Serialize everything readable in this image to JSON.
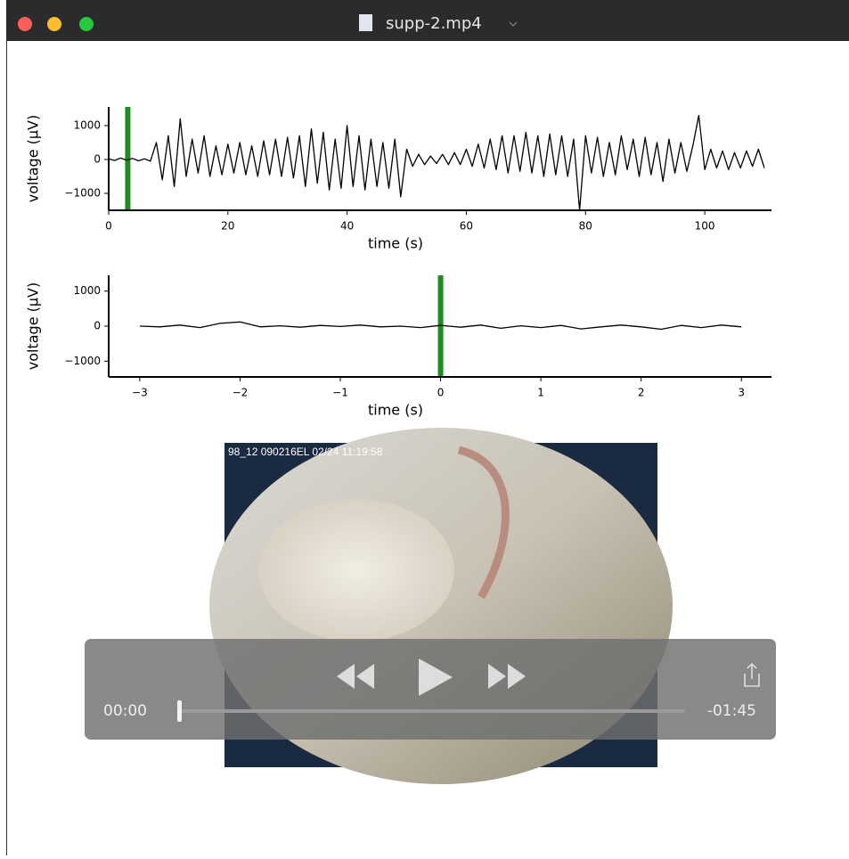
{
  "window": {
    "title": "supp-2.mp4"
  },
  "chart_data": [
    {
      "type": "line",
      "xlabel": "time (s)",
      "ylabel": "voltage (µV)",
      "color": "#000000",
      "x": [
        0,
        1,
        2,
        3,
        4,
        5,
        6,
        7,
        8,
        9,
        10,
        11,
        12,
        13,
        14,
        15,
        16,
        17,
        18,
        19,
        20,
        21,
        22,
        23,
        24,
        25,
        26,
        27,
        28,
        29,
        30,
        31,
        32,
        33,
        34,
        35,
        36,
        37,
        38,
        39,
        40,
        41,
        42,
        43,
        44,
        45,
        46,
        47,
        48,
        49,
        50,
        51,
        52,
        53,
        54,
        55,
        56,
        57,
        58,
        59,
        60,
        61,
        62,
        63,
        64,
        65,
        66,
        67,
        68,
        69,
        70,
        71,
        72,
        73,
        74,
        75,
        76,
        77,
        78,
        79,
        80,
        81,
        82,
        83,
        84,
        85,
        86,
        87,
        88,
        89,
        90,
        91,
        92,
        93,
        94,
        95,
        96,
        97,
        98,
        99,
        100,
        101,
        102,
        103,
        104,
        105,
        106,
        107,
        108,
        109,
        110
      ],
      "values": [
        20,
        -30,
        40,
        -20,
        30,
        -40,
        20,
        -50,
        500,
        -600,
        700,
        -800,
        1200,
        -500,
        600,
        -400,
        700,
        -500,
        400,
        -450,
        450,
        -400,
        500,
        -450,
        400,
        -500,
        550,
        -450,
        600,
        -500,
        650,
        -550,
        700,
        -800,
        900,
        -700,
        800,
        -900,
        600,
        -850,
        1000,
        -800,
        700,
        -900,
        600,
        -800,
        500,
        -850,
        600,
        -1100,
        300,
        -200,
        150,
        -150,
        100,
        -120,
        150,
        -150,
        200,
        -150,
        300,
        -200,
        450,
        -250,
        600,
        -300,
        700,
        -400,
        700,
        -350,
        800,
        -400,
        700,
        -500,
        750,
        -450,
        700,
        -500,
        600,
        -1500,
        700,
        -400,
        650,
        -500,
        500,
        -450,
        700,
        -300,
        600,
        -500,
        650,
        -450,
        500,
        -650,
        600,
        -400,
        500,
        -350,
        400,
        1300,
        -300,
        300,
        -250,
        250,
        -300,
        200,
        -250,
        250,
        -200,
        300,
        -250
      ],
      "xlim": [
        0,
        111.2
      ],
      "ylim": [
        -1500,
        1550
      ],
      "xticks": [
        0,
        20,
        40,
        60,
        80,
        100
      ],
      "yticks": [
        {
          "value": -1000,
          "label": "−1000"
        },
        0,
        1000
      ],
      "marker_x": 3.2,
      "marker_color": "#1e8c1e"
    },
    {
      "type": "line",
      "xlabel": "time (s)",
      "ylabel": "voltage (µV)",
      "color": "#000000",
      "x": [
        -3,
        -2.8,
        -2.6,
        -2.4,
        -2.2,
        -2,
        -1.8,
        -1.6,
        -1.4,
        -1.2,
        -1,
        -0.8,
        -0.6,
        -0.4,
        -0.2,
        0,
        0.2,
        0.4,
        0.6,
        0.8,
        1,
        1.2,
        1.4,
        1.6,
        1.8,
        2,
        2.2,
        2.4,
        2.6,
        2.8,
        3
      ],
      "values": [
        0,
        -20,
        30,
        -40,
        80,
        120,
        -20,
        10,
        -30,
        20,
        -10,
        30,
        -20,
        0,
        -40,
        20,
        -30,
        30,
        -60,
        10,
        -40,
        20,
        -80,
        -20,
        30,
        -20,
        -90,
        20,
        -40,
        30,
        -20
      ],
      "xlim": [
        -3.31,
        3.3
      ],
      "ylim": [
        -1450,
        1450
      ],
      "xticks": [
        {
          "value": -3,
          "label": "−3"
        },
        {
          "value": -2,
          "label": "−2"
        },
        {
          "value": -1,
          "label": "−1"
        },
        0,
        1,
        2,
        3
      ],
      "yticks": [
        {
          "value": -1000,
          "label": "−1000"
        },
        0,
        1000
      ],
      "marker_x": 0,
      "marker_color": "#1e8c1e"
    }
  ],
  "video": {
    "overlay": "98_12 090216EL 02/24 11:19:58",
    "elapsed": "00:00",
    "remaining": "-01:45"
  }
}
